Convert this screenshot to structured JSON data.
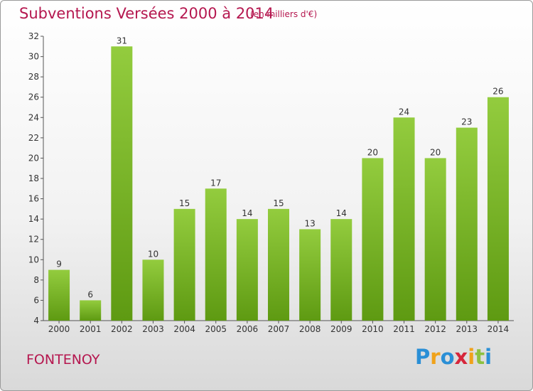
{
  "chart_data": {
    "type": "bar",
    "title": "Subventions Versées 2000 à 2014",
    "subtitle": "(en milliers d'€)",
    "categories": [
      "2000",
      "2001",
      "2002",
      "2003",
      "2004",
      "2005",
      "2006",
      "2007",
      "2008",
      "2009",
      "2010",
      "2011",
      "2012",
      "2013",
      "2014"
    ],
    "values": [
      9,
      6,
      31,
      10,
      15,
      17,
      14,
      15,
      13,
      14,
      20,
      24,
      20,
      23,
      26
    ],
    "ylim": [
      4,
      32
    ],
    "yticks": [
      4,
      6,
      8,
      10,
      12,
      14,
      16,
      18,
      20,
      22,
      24,
      26,
      28,
      30,
      32
    ],
    "grid": false,
    "bar_color": "#7dbb2a"
  },
  "location": "FONTENOY",
  "brand": [
    "P",
    "r",
    "o",
    "x",
    "i",
    "t",
    "i"
  ],
  "brand_colors": [
    "#2a8fd6",
    "#f0a21a",
    "#2a8fd6",
    "#d6263b",
    "#f0a21a",
    "#8cc13f",
    "#2a8fd6"
  ]
}
